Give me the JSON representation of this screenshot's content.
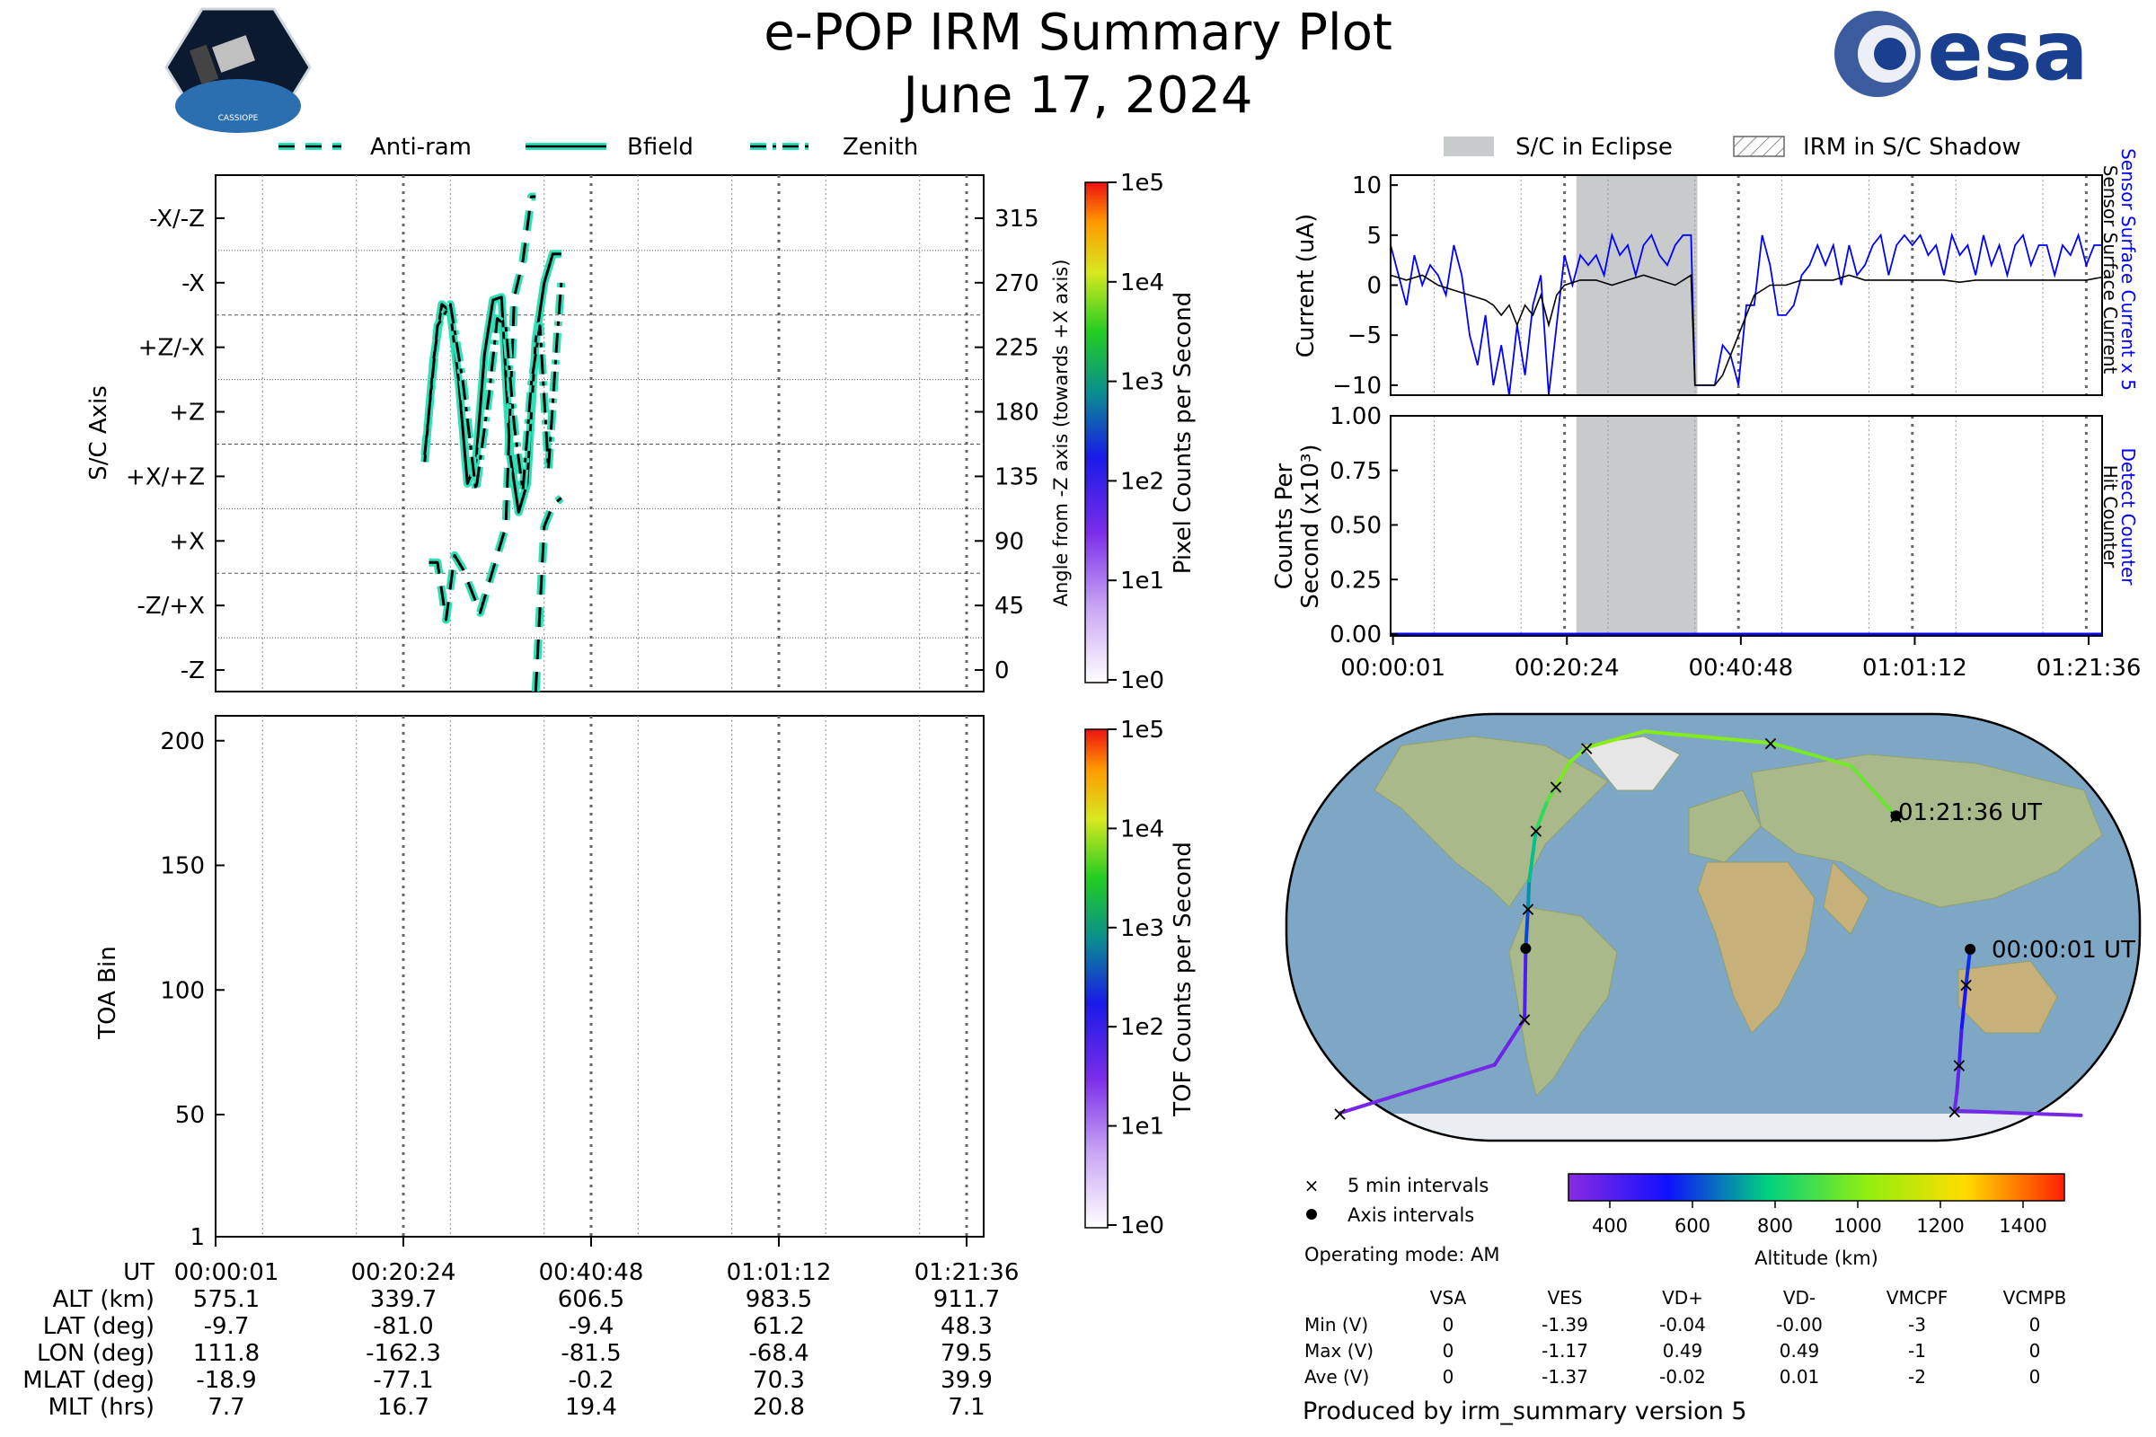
{
  "title": {
    "line1": "e-POP IRM Summary Plot",
    "line2": "June 17, 2024"
  },
  "logos": {
    "left_text": "CASSIOPE",
    "right_text": "esa"
  },
  "colors": {
    "trace": "#000000",
    "trace_outline": "#2de0b8",
    "blue": "#0000ff",
    "eclipse": "#c8cbcb",
    "map_water": "#7ea6c5"
  },
  "legend_top": {
    "anti_ram": "Anti-ram",
    "bfield": "Bfield",
    "zenith": "Zenith"
  },
  "legend_right": {
    "eclipse": "S/C in Eclipse",
    "shadow": "IRM in S/C Shadow"
  },
  "panel_axis": {
    "ylabel": "S/C Axis",
    "ylabel_right": "Angle from -Z axis (towards +X axis)",
    "cbar_label": "Pixel Counts per Second",
    "cbar_ticks": [
      "1e5",
      "1e4",
      "1e3",
      "1e2",
      "1e1",
      "1e0"
    ],
    "left_ticks": [
      "-X/-Z",
      "-X",
      "+Z/-X",
      "+Z",
      "+X/+Z",
      "+X",
      "-Z/+X",
      "-Z"
    ],
    "right_ticks": [
      "315",
      "270",
      "225",
      "180",
      "135",
      "90",
      "45",
      "0"
    ]
  },
  "panel_toa": {
    "ylabel": "TOA Bin",
    "cbar_label": "TOF Counts per Second",
    "cbar_ticks": [
      "1e5",
      "1e4",
      "1e3",
      "1e2",
      "1e1",
      "1e0"
    ],
    "yticks": [
      "200",
      "150",
      "100",
      "50",
      "1"
    ]
  },
  "bottom_table": {
    "row_labels": [
      "UT",
      "ALT (km)",
      "LAT (deg)",
      "LON (deg)",
      "MLAT (deg)",
      "MLT (hrs)"
    ],
    "columns": [
      [
        "00:00:01",
        "575.1",
        "-9.7",
        "111.8",
        "-18.9",
        "7.7"
      ],
      [
        "00:20:24",
        "339.7",
        "-81.0",
        "-162.3",
        "-77.1",
        "16.7"
      ],
      [
        "00:40:48",
        "606.5",
        "-9.4",
        "-81.5",
        "-0.2",
        "19.4"
      ],
      [
        "01:01:12",
        "983.5",
        "61.2",
        "-68.4",
        "70.3",
        "20.8"
      ],
      [
        "01:21:36",
        "911.7",
        "48.3",
        "79.5",
        "39.9",
        "7.1"
      ]
    ]
  },
  "panel_current": {
    "ylabel": "Current (uA)",
    "yticks": [
      "10",
      "5",
      "0",
      "−5",
      "−10"
    ],
    "right_label_blue": "Sensor Surface Current x 5",
    "right_label_black": "Sensor Surface Current"
  },
  "panel_counts": {
    "ylabel_line1": "Counts Per",
    "ylabel_line2": "Second (x10³)",
    "yticks": [
      "1.00",
      "0.75",
      "0.50",
      "0.25",
      "0.00"
    ],
    "right_label_blue": "Detect Counter",
    "right_label_black": "Hit Counter",
    "xticks": [
      "00:00:01",
      "00:20:24",
      "00:40:48",
      "01:01:12",
      "01:21:36"
    ]
  },
  "map": {
    "end_label": "01:21:36 UT",
    "start_label": "00:00:01 UT",
    "legend_5min": "5 min intervals",
    "legend_axis": "Axis intervals",
    "operating_mode": "Operating mode: AM",
    "cbar_ticks": [
      "400",
      "600",
      "800",
      "1000",
      "1200",
      "1400"
    ],
    "cbar_label": "Altitude (km)"
  },
  "voltage_table": {
    "headers": [
      "VSA",
      "VES",
      "VD+",
      "VD-",
      "VMCPF",
      "VCMPB"
    ],
    "rows": [
      {
        "label": "Min (V)",
        "values": [
          "0",
          "-1.39",
          "-0.04",
          "-0.00",
          "-3",
          "0"
        ]
      },
      {
        "label": "Max (V)",
        "values": [
          "0",
          "-1.17",
          "0.49",
          "0.49",
          "-1",
          "0"
        ]
      },
      {
        "label": "Ave (V)",
        "values": [
          "0",
          "-1.37",
          "-0.02",
          "0.01",
          "-2",
          "0"
        ]
      }
    ]
  },
  "footer": "Produced by irm_summary version 5",
  "chart_data": [
    {
      "type": "line",
      "title": "",
      "xlabel": "UT",
      "ylabel": "S/C Axis",
      "x_range_minutes": [
        0,
        90
      ],
      "ylim": [
        -15,
        345
      ],
      "series": [
        {
          "name": "Bfield",
          "style": "solid",
          "x": [
            24.5,
            25.5,
            26.5,
            27.5,
            28.5,
            29.5,
            30.5,
            31.5,
            32.5,
            33.5,
            34.5,
            35.5,
            36.5,
            37.5,
            38.5,
            39.5,
            40.5
          ],
          "y": [
            145,
            215,
            255,
            250,
            200,
            130,
            145,
            220,
            258,
            260,
            150,
            110,
            130,
            230,
            270,
            290,
            290
          ]
        },
        {
          "name": "Anti-ram",
          "style": "dashed",
          "x": [
            25,
            26,
            27,
            28,
            29,
            31,
            33,
            34,
            35,
            36,
            37,
            37.5,
            37.5,
            38.5,
            39.5,
            40.5
          ],
          "y": [
            75,
            75,
            35,
            80,
            70,
            40,
            80,
            100,
            260,
            285,
            330,
            330,
            -15,
            100,
            115,
            120
          ]
        },
        {
          "name": "Zenith",
          "style": "dashdot",
          "x": [
            24.5,
            26,
            27.5,
            29,
            30.5,
            32,
            33,
            34,
            35,
            36,
            37,
            38,
            39,
            40,
            40.5
          ],
          "y": [
            150,
            240,
            255,
            200,
            125,
            190,
            245,
            240,
            170,
            125,
            200,
            240,
            140,
            230,
            270
          ]
        }
      ]
    },
    {
      "type": "heatmap",
      "title": "",
      "xlabel": "UT",
      "ylabel": "TOA Bin",
      "ylim": [
        1,
        210
      ],
      "values": []
    },
    {
      "type": "line",
      "title": "",
      "xlabel": "",
      "ylabel": "Current (uA)",
      "x_range_minutes": [
        0,
        90
      ],
      "ylim": [
        -11,
        11
      ],
      "eclipse_minutes": [
        23.5,
        38.8
      ],
      "series": [
        {
          "name": "Sensor Surface Current x 5",
          "color": "#0000ff",
          "x": [
            0,
            1,
            2,
            3,
            4,
            5,
            6,
            7,
            8,
            9,
            10,
            11,
            12,
            13,
            14,
            15,
            16,
            17,
            18,
            19,
            20,
            21,
            22,
            23,
            24,
            25,
            26,
            27,
            28,
            29,
            30,
            31,
            32,
            33,
            34,
            35,
            36,
            37,
            38,
            38.5,
            39,
            40,
            41,
            42,
            43,
            44,
            45,
            46,
            47,
            48,
            49,
            50,
            51,
            52,
            53,
            54,
            55,
            56,
            57,
            58,
            59,
            60,
            61,
            62,
            63,
            64,
            65,
            66,
            67,
            68,
            69,
            70,
            71,
            72,
            73,
            74,
            75,
            76,
            77,
            78,
            79,
            80,
            81,
            82,
            83,
            84,
            85,
            86,
            87,
            88,
            89,
            90
          ],
          "y": [
            4,
            1,
            -2,
            3,
            0,
            2,
            1,
            -1,
            4,
            1,
            -5,
            -8,
            -3,
            -10,
            -6,
            -11,
            -4,
            -9,
            -2,
            1,
            -11,
            -4,
            3,
            0,
            3,
            2,
            3,
            1,
            5,
            3,
            4,
            1,
            4,
            5,
            3,
            2,
            4,
            5,
            5,
            -10,
            -10,
            -10,
            -10,
            -6,
            -7,
            -10,
            -2,
            -2,
            5,
            2,
            -3,
            -3,
            -2,
            1,
            2,
            4,
            2,
            4,
            0,
            4,
            1,
            2,
            4,
            5,
            1,
            4,
            5,
            4,
            5,
            3,
            4,
            1,
            5,
            3,
            4,
            1,
            5,
            2,
            4,
            1,
            4,
            5,
            2,
            4,
            4,
            1,
            4,
            3,
            5,
            2,
            4,
            4
          ]
        },
        {
          "name": "Sensor Surface Current",
          "color": "#000000",
          "x": [
            0,
            2,
            4,
            6,
            8,
            10,
            12,
            13,
            14,
            15,
            16,
            17,
            18,
            19,
            20,
            21,
            22,
            24,
            26,
            28,
            30,
            32,
            34,
            36,
            38,
            38.5,
            41,
            42,
            43,
            44,
            45,
            46,
            48,
            50,
            52,
            54,
            56,
            58,
            60,
            62,
            64,
            66,
            68,
            70,
            72,
            74,
            76,
            78,
            80,
            82,
            84,
            86,
            88,
            90
          ],
          "y": [
            1,
            0.5,
            1,
            0,
            -0.5,
            -1,
            -1.5,
            -2,
            -3,
            -2,
            -4,
            -2,
            -3,
            -1,
            -4,
            -1,
            0,
            0.5,
            0.5,
            0,
            0.5,
            1,
            0.5,
            0,
            1,
            -10,
            -10,
            -9,
            -7,
            -5,
            -3,
            -1,
            0,
            0,
            0.5,
            0.5,
            0.5,
            1,
            0.5,
            0.5,
            0.5,
            0.5,
            0.5,
            0.5,
            0.3,
            0.5,
            0.5,
            0.5,
            0.5,
            0.5,
            0.5,
            0.5,
            0.5,
            0.8
          ]
        }
      ]
    },
    {
      "type": "line",
      "title": "",
      "xlabel": "UT",
      "ylabel": "Counts Per Second (x10³)",
      "x_range_minutes": [
        0,
        90
      ],
      "ylim": [
        0,
        1
      ],
      "eclipse_minutes": [
        23.5,
        38.8
      ],
      "series": [
        {
          "name": "Detect Counter",
          "color": "#0000ff",
          "x": [
            0,
            90
          ],
          "y": [
            0,
            0
          ]
        },
        {
          "name": "Hit Counter",
          "color": "#000000",
          "x": [
            0,
            90
          ],
          "y": [
            0,
            0
          ]
        }
      ]
    },
    {
      "type": "scatter",
      "title": "",
      "xlabel": "Longitude",
      "ylabel": "Latitude",
      "series": [
        {
          "name": "orbit track",
          "x": [
            111.8,
            110,
            108,
            107,
            106,
            105,
            160,
            -162.3,
            -95,
            -82,
            -81.5,
            -80.5,
            -80,
            -77,
            -72,
            -68.4,
            -62,
            -55,
            -30,
            25,
            60,
            79.5
          ],
          "y": [
            -9.7,
            -25,
            -45,
            -60,
            -72,
            -80,
            -82,
            -81,
            -60,
            -40,
            -9.4,
            8,
            20,
            42,
            55,
            61.2,
            72,
            78,
            85,
            80,
            70,
            48.3
          ],
          "altitude_km": [
            575,
            520,
            440,
            380,
            350,
            340,
            340,
            340,
            360,
            420,
            606,
            700,
            760,
            860,
            930,
            983,
            1000,
            1010,
            1000,
            980,
            950,
            911
          ]
        }
      ]
    }
  ]
}
